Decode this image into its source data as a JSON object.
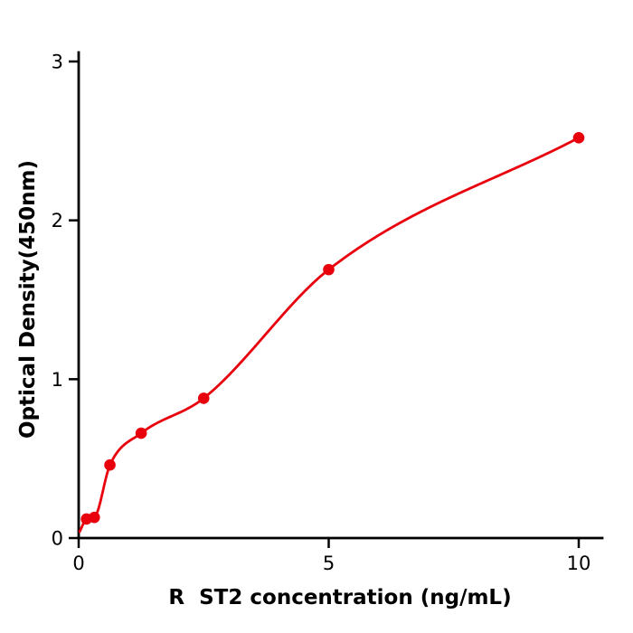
{
  "chart_data": {
    "type": "scatter",
    "title": "",
    "xlabel": "R  ST2 concentration (ng/mL)",
    "ylabel": "Optical Density(450nm)",
    "x": [
      0.156,
      0.313,
      0.625,
      1.25,
      2.5,
      5,
      10
    ],
    "y": [
      0.12,
      0.13,
      0.46,
      0.66,
      0.88,
      1.69,
      2.52
    ],
    "curve_anchor": {
      "x": 0.02,
      "y": 0.04
    },
    "has_fit_curve": true,
    "xlim": [
      0,
      10
    ],
    "ylim": [
      0,
      3
    ],
    "xticks": [
      0,
      5,
      10
    ],
    "yticks": [
      0,
      1,
      2,
      3
    ],
    "grid": false,
    "legend": "none",
    "point_color": "#e8000d",
    "line_color": "#e8000d",
    "axis_color": "#000000",
    "background_color": "#ffffff"
  }
}
